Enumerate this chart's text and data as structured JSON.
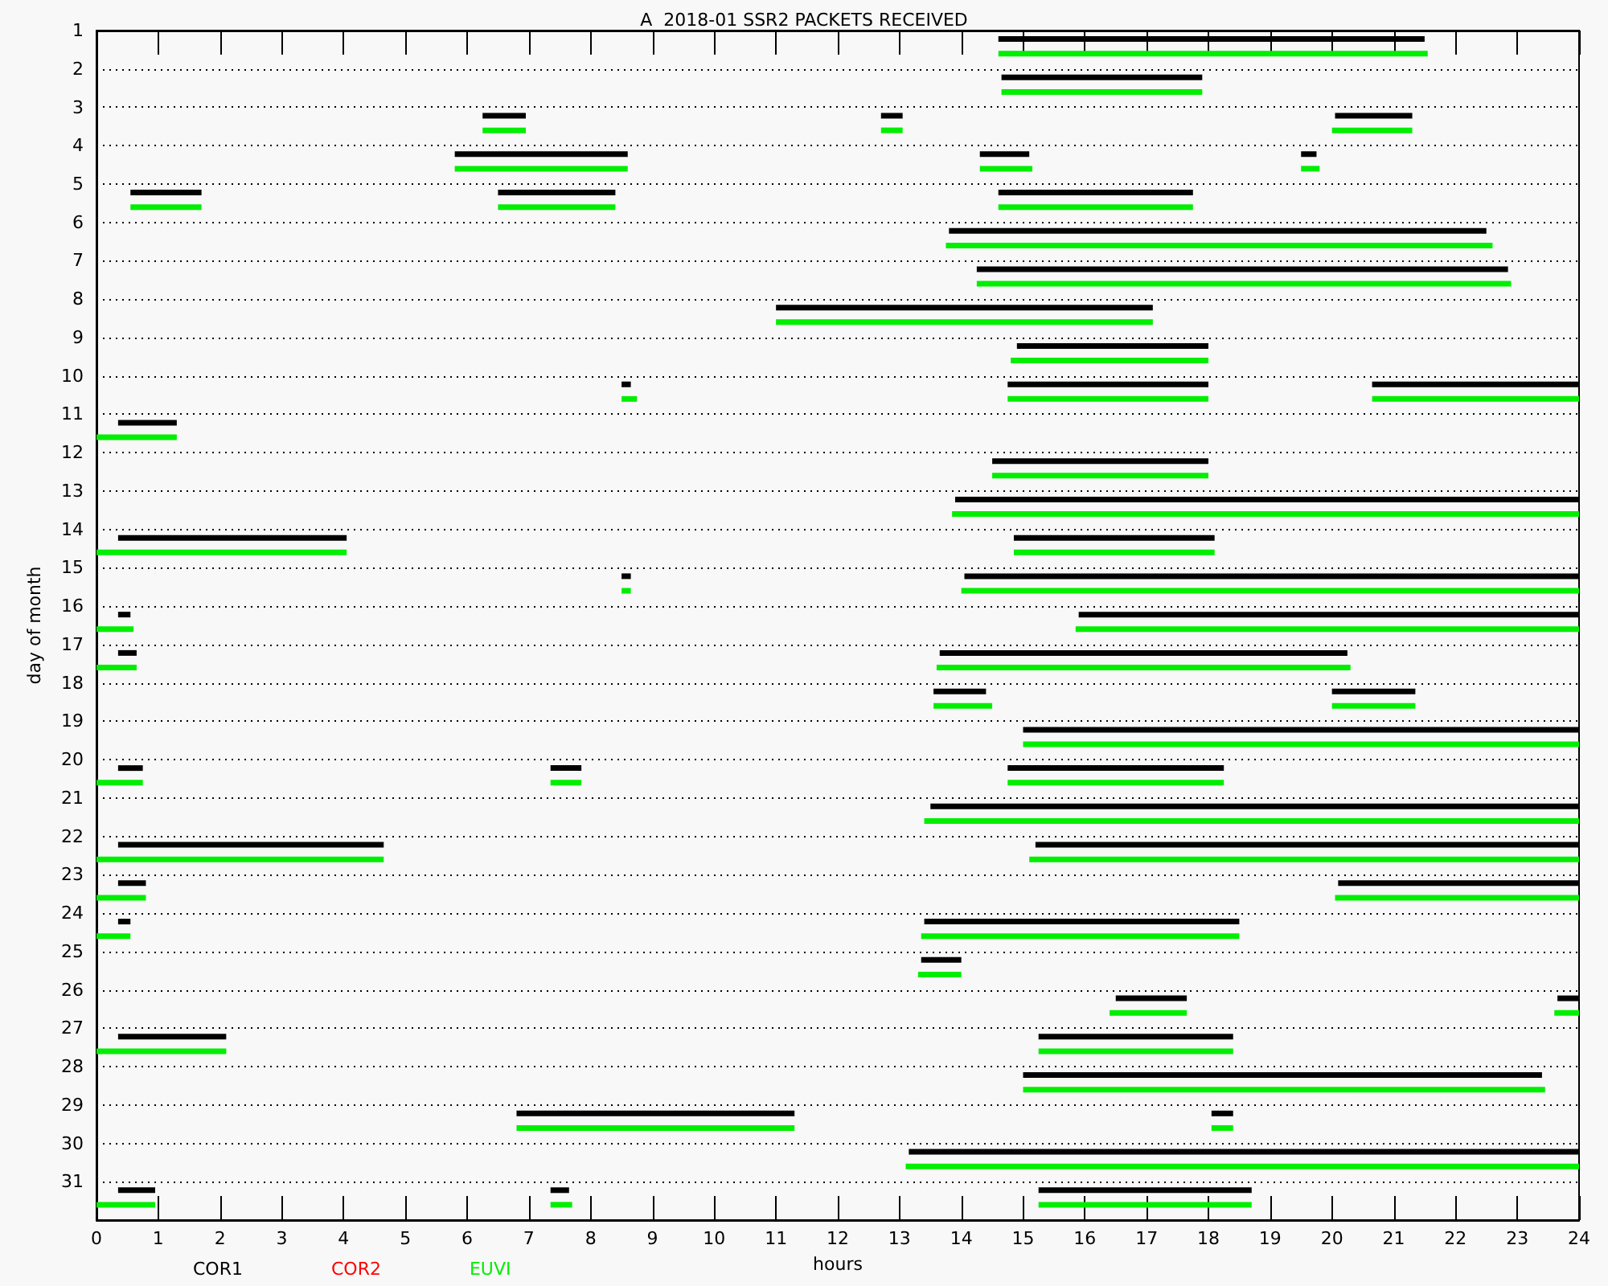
{
  "chart_data": {
    "type": "bar",
    "orientation": "horizontal",
    "title": "A  2018-01 SSR2 PACKETS RECEIVED",
    "xlabel": "hours",
    "ylabel": "day of month",
    "categories": [
      "1",
      "2",
      "3",
      "4",
      "5",
      "6",
      "7",
      "8",
      "9",
      "10",
      "11",
      "12",
      "13",
      "14",
      "15",
      "16",
      "17",
      "18",
      "19",
      "20",
      "21",
      "22",
      "23",
      "24",
      "25",
      "26",
      "27",
      "28",
      "29",
      "30",
      "31"
    ],
    "xlim": [
      0,
      24
    ],
    "xticks": [
      0,
      1,
      2,
      3,
      4,
      5,
      6,
      7,
      8,
      9,
      10,
      11,
      12,
      13,
      14,
      15,
      16,
      17,
      18,
      19,
      20,
      21,
      22,
      23,
      24
    ],
    "grid": "y",
    "legend": "bottom left",
    "series": [
      {
        "name": "COR1",
        "color": "#000000",
        "base": [
          14.6,
          14.65,
          6.25,
          5.8,
          0.55,
          13.8,
          14.25,
          11,
          14.9,
          8.5,
          0.35,
          14.5,
          13.9,
          0.35,
          8.5,
          0.35,
          0.35,
          13.55,
          15,
          0.35,
          13.5,
          0.35,
          0.35,
          0.35,
          13.35,
          16.5,
          0.35,
          15,
          6.8,
          13.15,
          0.35
        ],
        "values": [
          6.9,
          3.25,
          0.7,
          2.8,
          1.15,
          8.7,
          8.6,
          6.1,
          3.1,
          0.15,
          0.95,
          3.5,
          10.1,
          3.7,
          0.15,
          0.2,
          0.3,
          0.85,
          9,
          0.4,
          10.5,
          4.3,
          0.45,
          0.2,
          0.65,
          1.15,
          1.75,
          8.4,
          4.5,
          10.85,
          0.6
        ]
      },
      {
        "color": "#000000",
        "base": [
          null,
          null,
          12.7,
          14.3,
          6.5,
          null,
          null,
          null,
          null,
          14.75,
          null,
          null,
          null,
          14.85,
          14.05,
          15.9,
          13.65,
          20,
          null,
          7.35,
          null,
          15.2,
          20.1,
          13.4,
          null,
          23.65,
          15.25,
          null,
          18.05,
          null,
          7.35
        ],
        "values": [
          null,
          null,
          0.35,
          0.8,
          1.9,
          null,
          null,
          null,
          null,
          3.25,
          null,
          null,
          null,
          3.25,
          9.95,
          8.1,
          6.6,
          1.35,
          null,
          0.5,
          null,
          8.8,
          3.9,
          5.1,
          null,
          0.35,
          3.15,
          null,
          0.35,
          null,
          0.3
        ]
      },
      {
        "color": "#000000",
        "base": [
          null,
          null,
          20.05,
          19.5,
          14.6,
          null,
          null,
          null,
          null,
          20.65,
          null,
          null,
          null,
          null,
          null,
          null,
          null,
          null,
          null,
          14.75,
          null,
          null,
          null,
          null,
          null,
          null,
          null,
          null,
          null,
          null,
          15.25
        ],
        "values": [
          null,
          null,
          1.25,
          0.25,
          3.15,
          null,
          null,
          null,
          null,
          3.35,
          null,
          null,
          null,
          null,
          null,
          null,
          null,
          null,
          null,
          3.5,
          null,
          null,
          null,
          null,
          null,
          null,
          null,
          null,
          null,
          null,
          3.45
        ]
      },
      {
        "name": "COR2",
        "color": "#ff0000",
        "base": [
          null,
          null,
          null,
          null,
          null,
          null,
          null,
          null,
          null,
          null,
          null,
          null,
          null,
          null,
          null,
          null,
          null,
          null,
          null,
          null,
          null,
          null,
          null,
          null,
          null,
          null,
          null,
          null,
          null,
          null,
          null
        ],
        "values": [
          null,
          null,
          null,
          null,
          null,
          null,
          null,
          null,
          null,
          null,
          null,
          null,
          null,
          null,
          null,
          null,
          null,
          null,
          null,
          null,
          null,
          null,
          null,
          null,
          null,
          null,
          null,
          null,
          null,
          null,
          null
        ]
      },
      {
        "name": "EUVI",
        "color": "#00ee00",
        "base": [
          14.6,
          14.65,
          6.25,
          5.8,
          0.55,
          13.75,
          14.25,
          11,
          14.8,
          8.5,
          0,
          14.5,
          13.85,
          0,
          8.5,
          0,
          0,
          13.55,
          15,
          0,
          13.4,
          0,
          0,
          0,
          13.3,
          16.4,
          0,
          15,
          6.8,
          13.1,
          0
        ],
        "values": [
          6.95,
          3.25,
          0.7,
          2.8,
          1.15,
          8.85,
          8.65,
          6.1,
          3.2,
          0.25,
          1.3,
          3.5,
          10.15,
          4.05,
          0.15,
          0.6,
          0.65,
          0.95,
          9,
          0.75,
          10.6,
          4.65,
          0.8,
          0.55,
          0.7,
          1.25,
          2.1,
          8.45,
          4.5,
          10.9,
          0.95
        ]
      },
      {
        "color": "#00ee00",
        "base": [
          null,
          null,
          12.7,
          14.3,
          6.5,
          null,
          null,
          null,
          null,
          14.75,
          null,
          null,
          null,
          14.85,
          14,
          15.85,
          13.6,
          20,
          null,
          7.35,
          null,
          15.1,
          20.05,
          13.35,
          null,
          23.6,
          15.25,
          null,
          18.05,
          null,
          7.35
        ],
        "values": [
          null,
          null,
          0.35,
          0.85,
          1.9,
          null,
          null,
          null,
          null,
          3.25,
          null,
          null,
          null,
          3.25,
          10,
          8.15,
          6.7,
          1.35,
          null,
          0.5,
          null,
          8.9,
          3.95,
          5.15,
          null,
          0.4,
          3.15,
          null,
          0.35,
          null,
          0.35
        ]
      },
      {
        "color": "#00ee00",
        "base": [
          null,
          null,
          20,
          19.5,
          14.6,
          null,
          null,
          null,
          null,
          20.65,
          null,
          null,
          null,
          null,
          null,
          null,
          null,
          null,
          null,
          14.75,
          null,
          null,
          null,
          null,
          null,
          null,
          null,
          null,
          null,
          null,
          15.25
        ],
        "values": [
          null,
          null,
          1.3,
          0.3,
          3.15,
          null,
          null,
          null,
          null,
          3.35,
          null,
          null,
          null,
          null,
          null,
          null,
          null,
          null,
          null,
          3.5,
          null,
          null,
          null,
          null,
          null,
          null,
          null,
          null,
          null,
          null,
          3.45
        ]
      }
    ]
  }
}
